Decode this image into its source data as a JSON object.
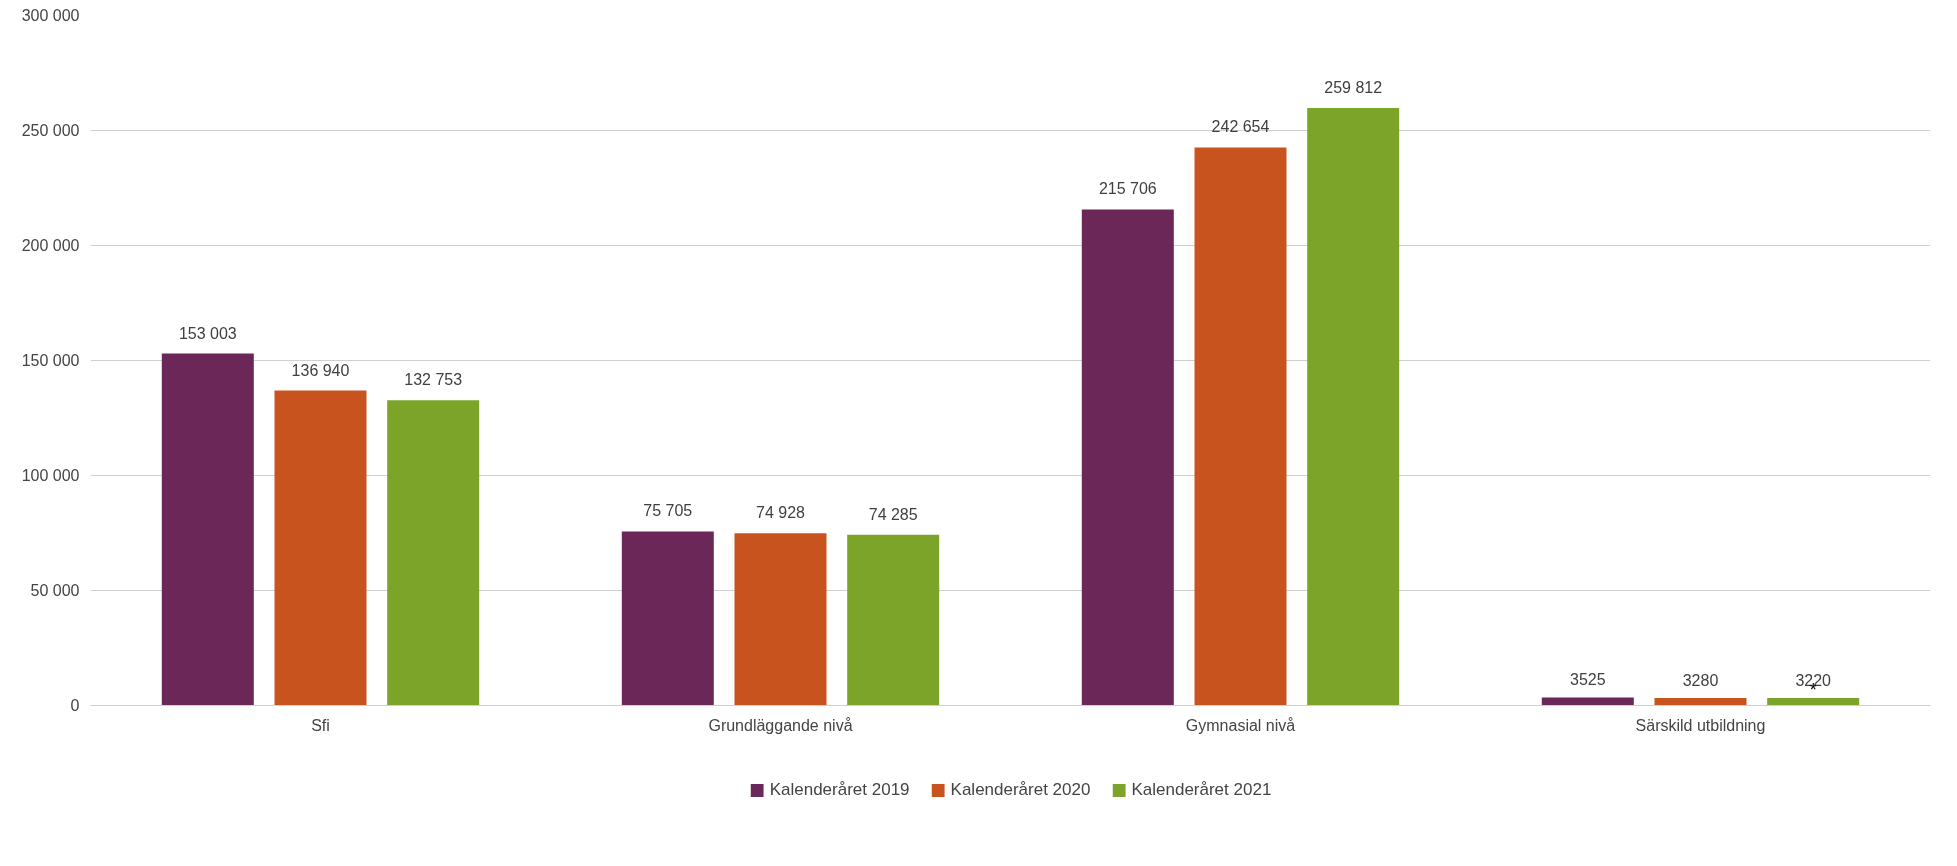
{
  "chart_data": {
    "type": "bar",
    "categories": [
      "Sfi",
      "Grundläggande nivå",
      "Gymnasial nivå",
      "Särskild utbildning"
    ],
    "series": [
      {
        "name": "Kalenderåret 2019",
        "color": "#6b2757",
        "values": [
          153003,
          75705,
          215706,
          3525
        ],
        "value_labels": [
          "153 003",
          "75 705",
          "215 706",
          "3525"
        ]
      },
      {
        "name": "Kalenderåret 2020",
        "color": "#c8531f",
        "values": [
          136940,
          74928,
          242654,
          3280
        ],
        "value_labels": [
          "136 940",
          "74 928",
          "242 654",
          "3280"
        ]
      },
      {
        "name": "Kalenderåret 2021",
        "color": "#7ba428",
        "values": [
          132753,
          74285,
          259812,
          3220
        ],
        "value_labels": [
          "132 753",
          "74 285",
          "259 812",
          "3220"
        ]
      }
    ],
    "ylim": [
      0,
      300000
    ],
    "yticks": [
      0,
      {
        "value": 50000,
        "label": "50 000"
      },
      {
        "value": 100000,
        "label": "100 000"
      },
      {
        "value": 150000,
        "label": "150 000"
      },
      {
        "value": 200000,
        "label": "200 000"
      },
      {
        "value": 250000,
        "label": "250 000"
      },
      {
        "value": 300000,
        "label": "300 000"
      }
    ],
    "grid": "y",
    "legend": "bottom",
    "annotations": [
      "*"
    ]
  }
}
